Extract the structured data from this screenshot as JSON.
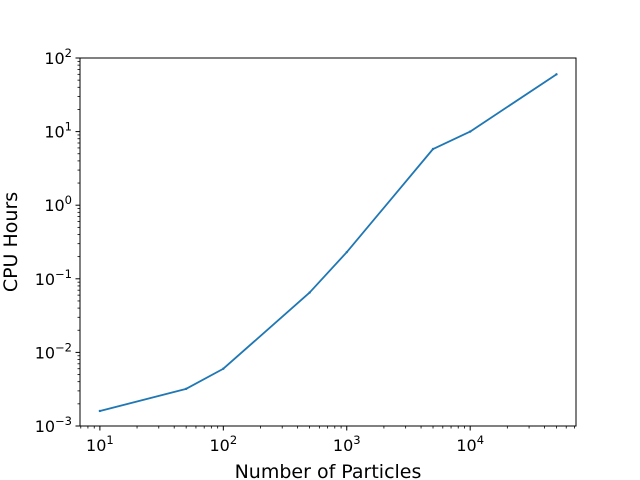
{
  "chart_data": {
    "type": "line",
    "title": "",
    "xlabel": "Number of Particles",
    "ylabel": "CPU Hours",
    "xscale": "log",
    "yscale": "log",
    "xlim": [
      6.9,
      72000
    ],
    "ylim": [
      0.001,
      100
    ],
    "grid": false,
    "legend": "none",
    "x_ticks": [
      {
        "base": "10",
        "exp": "1",
        "value": 10
      },
      {
        "base": "10",
        "exp": "2",
        "value": 100
      },
      {
        "base": "10",
        "exp": "3",
        "value": 1000
      },
      {
        "base": "10",
        "exp": "4",
        "value": 10000
      }
    ],
    "y_ticks": [
      {
        "base": "10",
        "exp": "−3",
        "value": 0.001
      },
      {
        "base": "10",
        "exp": "−2",
        "value": 0.01
      },
      {
        "base": "10",
        "exp": "−1",
        "value": 0.1
      },
      {
        "base": "10",
        "exp": "0",
        "value": 1
      },
      {
        "base": "10",
        "exp": "1",
        "value": 10
      },
      {
        "base": "10",
        "exp": "2",
        "value": 100
      }
    ],
    "series": [
      {
        "color": "#1f77b4",
        "x": [
          10,
          50,
          100,
          500,
          1000,
          5000,
          10000,
          50000
        ],
        "y": [
          0.0016,
          0.0032,
          0.006,
          0.065,
          0.23,
          5.8,
          10,
          60
        ]
      }
    ]
  }
}
